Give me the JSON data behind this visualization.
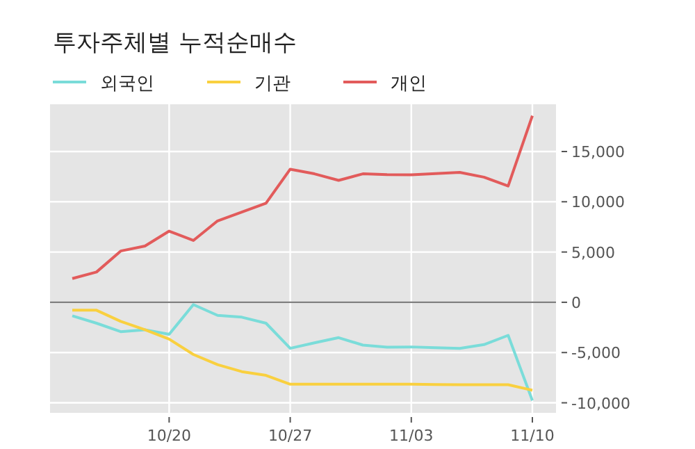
{
  "chart_data": {
    "type": "line",
    "title": "투자주체별 누적순매수",
    "categories": [
      null,
      null,
      null,
      null,
      "10/20",
      null,
      null,
      null,
      null,
      "10/27",
      null,
      null,
      null,
      null,
      "11/03",
      null,
      null,
      null,
      null,
      "11/10"
    ],
    "series": [
      {
        "name": "외국인",
        "color": "#7adcd9",
        "values": [
          -1340,
          -2080,
          -2920,
          -2730,
          -3190,
          -230,
          -1300,
          -1480,
          -2080,
          -4580,
          -4030,
          -3520,
          -4260,
          -4470,
          -4440,
          -4520,
          -4580,
          -4210,
          -3290,
          -9770
        ]
      },
      {
        "name": "기관",
        "color": "#f9d03f",
        "values": [
          -790,
          -790,
          -1900,
          -2730,
          -3660,
          -5190,
          -6200,
          -6900,
          -7270,
          -8150,
          -8150,
          -8150,
          -8150,
          -8150,
          -8150,
          -8180,
          -8200,
          -8200,
          -8200,
          -8750
        ]
      },
      {
        "name": "개인",
        "color": "#e25b5b",
        "values": [
          2360,
          3010,
          5100,
          5600,
          7080,
          6150,
          8100,
          8980,
          9860,
          13240,
          12780,
          12130,
          12780,
          12700,
          12690,
          12800,
          12920,
          12450,
          11570,
          18560
        ]
      }
    ],
    "ylim": [
      -11000,
      19700
    ],
    "yticks": [
      {
        "value": -10000,
        "label": "-10,000"
      },
      {
        "value": -5000,
        "label": "-5,000"
      },
      0,
      {
        "value": 5000,
        "label": "5,000"
      },
      {
        "value": 10000,
        "label": "10,000"
      },
      {
        "value": 15000,
        "label": "15,000"
      }
    ],
    "ref_lines": [
      {
        "axis": "y",
        "value": 0,
        "color": "#808080"
      }
    ],
    "grid": true,
    "legend": "top left",
    "line_style": "solid",
    "marker": "none"
  }
}
